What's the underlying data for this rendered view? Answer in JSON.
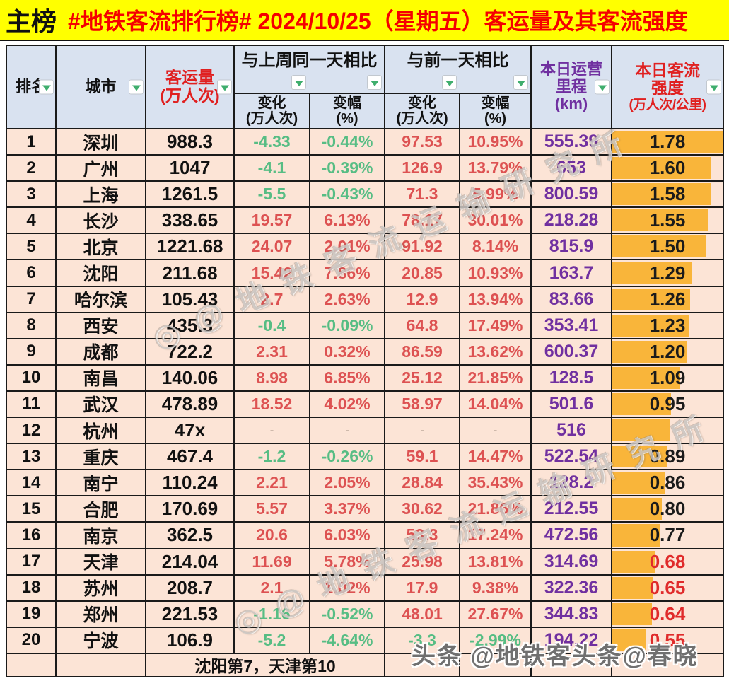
{
  "banner": {
    "tag": "主榜",
    "title": "#地铁客流排行榜# 2024/10/25（星期五）客运量及其客流强度"
  },
  "header": {
    "rank": "排名",
    "city": "城市",
    "volume": [
      "客运量",
      "(万人次)"
    ],
    "group_wow": "与上周同一天相比",
    "group_dod": "与前一天相比",
    "sub_change": [
      "变化",
      "(万人次)"
    ],
    "sub_pct": [
      "变幅",
      "(%)"
    ],
    "mileage": [
      "本日运营",
      "里程",
      "(km)"
    ],
    "intensity": [
      "本日客流",
      "强度",
      "(万人次/公里)"
    ]
  },
  "rows": [
    {
      "rank": "1",
      "city": "深圳",
      "volume": "988.3",
      "wow_change": "-4.33",
      "wow_pct": "-0.44%",
      "dod_change": "97.53",
      "dod_pct": "10.95%",
      "mileage": "555.39",
      "intensity": "1.78",
      "bar": 1.0,
      "intensity_red": false
    },
    {
      "rank": "2",
      "city": "广州",
      "volume": "1047",
      "wow_change": "-4.1",
      "wow_pct": "-0.39%",
      "dod_change": "126.9",
      "dod_pct": "13.79%",
      "mileage": "653",
      "intensity": "1.60",
      "bar": 0.899,
      "intensity_red": false
    },
    {
      "rank": "3",
      "city": "上海",
      "volume": "1261.5",
      "wow_change": "-5.5",
      "wow_pct": "-0.43%",
      "dod_change": "71.3",
      "dod_pct": "5.99%",
      "mileage": "800.59",
      "intensity": "1.58",
      "bar": 0.888,
      "intensity_red": false
    },
    {
      "rank": "4",
      "city": "长沙",
      "volume": "338.65",
      "wow_change": "19.57",
      "wow_pct": "6.13%",
      "dod_change": "78.17",
      "dod_pct": "30.01%",
      "mileage": "218.28",
      "intensity": "1.55",
      "bar": 0.871,
      "intensity_red": false
    },
    {
      "rank": "5",
      "city": "北京",
      "volume": "1221.68",
      "wow_change": "24.07",
      "wow_pct": "2.01%",
      "dod_change": "91.92",
      "dod_pct": "8.14%",
      "mileage": "815.9",
      "intensity": "1.50",
      "bar": 0.843,
      "intensity_red": false
    },
    {
      "rank": "6",
      "city": "沈阳",
      "volume": "211.68",
      "wow_change": "15.42",
      "wow_pct": "7.86%",
      "dod_change": "20.85",
      "dod_pct": "10.93%",
      "mileage": "163.7",
      "intensity": "1.29",
      "bar": 0.725,
      "intensity_red": false
    },
    {
      "rank": "7",
      "city": "哈尔滨",
      "volume": "105.43",
      "wow_change": "2.7",
      "wow_pct": "2.63%",
      "dod_change": "12.9",
      "dod_pct": "13.94%",
      "mileage": "83.66",
      "intensity": "1.26",
      "bar": 0.708,
      "intensity_red": false
    },
    {
      "rank": "8",
      "city": "西安",
      "volume": "435.3",
      "wow_change": "-0.4",
      "wow_pct": "-0.09%",
      "dod_change": "64.8",
      "dod_pct": "17.49%",
      "mileage": "353.41",
      "intensity": "1.23",
      "bar": 0.691,
      "intensity_red": false
    },
    {
      "rank": "9",
      "city": "成都",
      "volume": "722.2",
      "wow_change": "2.31",
      "wow_pct": "0.32%",
      "dod_change": "86.59",
      "dod_pct": "13.62%",
      "mileage": "600.37",
      "intensity": "1.20",
      "bar": 0.674,
      "intensity_red": false
    },
    {
      "rank": "10",
      "city": "南昌",
      "volume": "140.06",
      "wow_change": "8.98",
      "wow_pct": "6.85%",
      "dod_change": "25.12",
      "dod_pct": "21.85%",
      "mileage": "128.5",
      "intensity": "1.09",
      "bar": 0.612,
      "intensity_red": false
    },
    {
      "rank": "11",
      "city": "武汉",
      "volume": "478.89",
      "wow_change": "18.52",
      "wow_pct": "4.02%",
      "dod_change": "58.97",
      "dod_pct": "14.04%",
      "mileage": "501.6",
      "intensity": "0.95",
      "bar": 0.534,
      "intensity_red": false
    },
    {
      "rank": "12",
      "city": "杭州",
      "volume": "47x",
      "wow_change": "-",
      "wow_pct": "-",
      "dod_change": "-",
      "dod_pct": "-",
      "mileage": "516",
      "intensity": "",
      "bar": 0.52,
      "intensity_red": false
    },
    {
      "rank": "13",
      "city": "重庆",
      "volume": "467.4",
      "wow_change": "-1.2",
      "wow_pct": "-0.26%",
      "dod_change": "59.1",
      "dod_pct": "14.47%",
      "mileage": "522.54",
      "intensity": "0.89",
      "bar": 0.5,
      "intensity_red": false
    },
    {
      "rank": "14",
      "city": "南宁",
      "volume": "110.24",
      "wow_change": "2.21",
      "wow_pct": "2.05%",
      "dod_change": "28.84",
      "dod_pct": "35.43%",
      "mileage": "128.2",
      "intensity": "0.86",
      "bar": 0.483,
      "intensity_red": false
    },
    {
      "rank": "15",
      "city": "合肥",
      "volume": "170.69",
      "wow_change": "5.57",
      "wow_pct": "3.37%",
      "dod_change": "30.62",
      "dod_pct": "21.86%",
      "mileage": "212.55",
      "intensity": "0.80",
      "bar": 0.449,
      "intensity_red": false
    },
    {
      "rank": "16",
      "city": "南京",
      "volume": "362.5",
      "wow_change": "20.6",
      "wow_pct": "6.03%",
      "dod_change": "53.3",
      "dod_pct": "17.24%",
      "mileage": "472.56",
      "intensity": "0.77",
      "bar": 0.433,
      "intensity_red": false
    },
    {
      "rank": "17",
      "city": "天津",
      "volume": "214.04",
      "wow_change": "11.69",
      "wow_pct": "5.78%",
      "dod_change": "25.98",
      "dod_pct": "13.81%",
      "mileage": "314.69",
      "intensity": "0.68",
      "bar": 0.382,
      "intensity_red": true
    },
    {
      "rank": "18",
      "city": "苏州",
      "volume": "208.7",
      "wow_change": "2.1",
      "wow_pct": "1.02%",
      "dod_change": "17.9",
      "dod_pct": "9.38%",
      "mileage": "322.36",
      "intensity": "0.65",
      "bar": 0.365,
      "intensity_red": true
    },
    {
      "rank": "19",
      "city": "郑州",
      "volume": "221.53",
      "wow_change": "-1.16",
      "wow_pct": "-0.52%",
      "dod_change": "48.01",
      "dod_pct": "27.67%",
      "mileage": "344.83",
      "intensity": "0.64",
      "bar": 0.36,
      "intensity_red": true
    },
    {
      "rank": "20",
      "city": "宁波",
      "volume": "106.9",
      "wow_change": "-5.2",
      "wow_pct": "-4.64%",
      "dod_change": "-3.3",
      "dod_pct": "-2.99%",
      "mileage": "194.22",
      "intensity": "0.55",
      "bar": 0.309,
      "intensity_red": true
    }
  ],
  "footer": {
    "note": "沈阳第7，天津第10"
  },
  "watermarks": {
    "diagonal_upper": "◎@地铁客流运输研究所",
    "diagonal_lower": "◎@地铁客流运输研究所",
    "bottom_right": "头条 @地铁客头条@春晓"
  },
  "colors": {
    "banner_bg": "#ffff00",
    "banner_text_red": "#f50000",
    "header_bg": "#d9e2f0",
    "row_bg": "#fce4d6",
    "positive_red": "#dd5252",
    "negative_green": "#57bd84",
    "mileage_purple": "#7030a0",
    "intensity_bar_orange": "#f9b53a",
    "intensity_red": "#e02b2b"
  }
}
